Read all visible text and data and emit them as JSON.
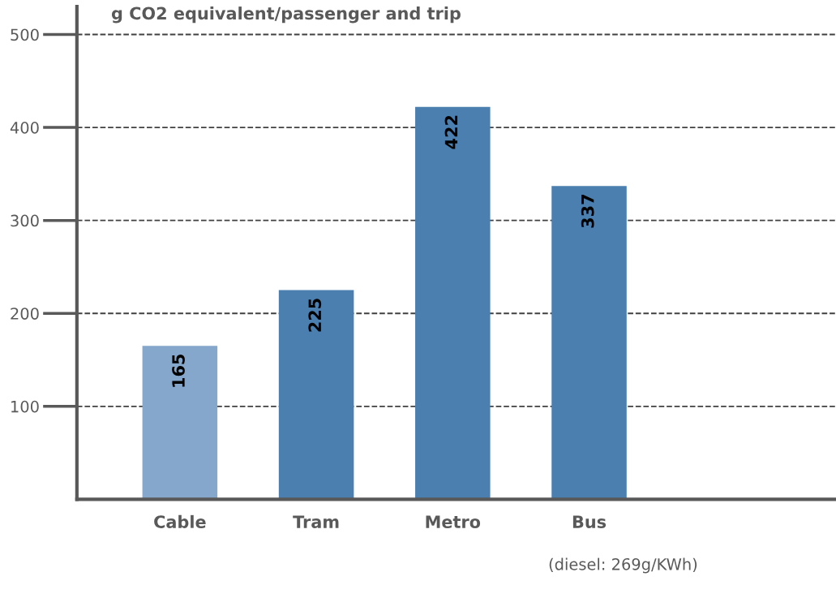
{
  "chart_data": {
    "type": "bar",
    "ylabel": "g CO2 equivalent/passenger and trip",
    "categories": [
      "Cable",
      "Tram",
      "Metro",
      "Bus"
    ],
    "values": [
      165,
      225,
      422,
      337
    ],
    "colors": [
      "#85a7cb",
      "#4a7fb0",
      "#4a7fb0",
      "#4a7fb0"
    ],
    "ylim": [
      0,
      530
    ],
    "yticks": [
      100,
      200,
      300,
      400,
      500
    ],
    "grid": "y",
    "data_labels": true,
    "annotations": [
      "(diesel: 269g/KWh)"
    ]
  }
}
